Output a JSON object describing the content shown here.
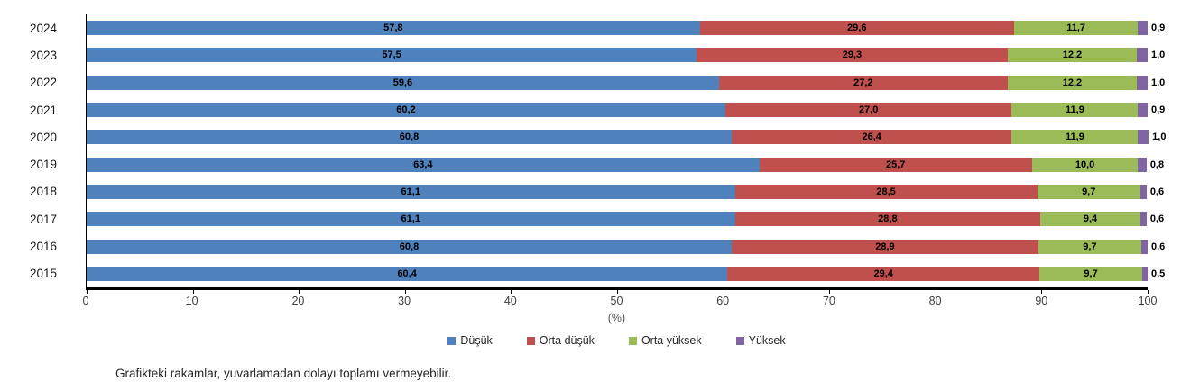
{
  "chart_data": {
    "type": "bar",
    "orientation": "horizontal",
    "stacked": true,
    "categories": [
      "2024",
      "2023",
      "2022",
      "2021",
      "2020",
      "2019",
      "2018",
      "2017",
      "2016",
      "2015"
    ],
    "series": [
      {
        "name": "Düşük",
        "color": "#4F81BD",
        "values": [
          57.8,
          57.5,
          59.6,
          60.2,
          60.8,
          63.4,
          61.1,
          61.1,
          60.8,
          60.4
        ]
      },
      {
        "name": "Orta düşük",
        "color": "#C0504D",
        "values": [
          29.6,
          29.3,
          27.2,
          27.0,
          26.4,
          25.7,
          28.5,
          28.8,
          28.9,
          29.4
        ]
      },
      {
        "name": "Orta yüksek",
        "color": "#9BBB59",
        "values": [
          11.7,
          12.2,
          12.2,
          11.9,
          11.9,
          10.0,
          9.7,
          9.4,
          9.7,
          9.7
        ]
      },
      {
        "name": "Yüksek",
        "color": "#8064A2",
        "values": [
          0.9,
          1.0,
          1.0,
          0.9,
          1.0,
          0.8,
          0.6,
          0.6,
          0.6,
          0.5
        ]
      }
    ],
    "value_labels": [
      [
        "57,8",
        "57,5",
        "59,6",
        "60,2",
        "60,8",
        "63,4",
        "61,1",
        "61,1",
        "60,8",
        "60,4"
      ],
      [
        "29,6",
        "29,3",
        "27,2",
        "27,0",
        "26,4",
        "25,7",
        "28,5",
        "28,8",
        "28,9",
        "29,4"
      ],
      [
        "11,7",
        "12,2",
        "12,2",
        "11,9",
        "11,9",
        "10,0",
        "9,7",
        "9,4",
        "9,7",
        "9,7"
      ],
      [
        "0,9",
        "1,0",
        "1,0",
        "0,9",
        "1,0",
        "0,8",
        "0,6",
        "0,6",
        "0,6",
        "0,5"
      ]
    ],
    "xlabel": "(%)",
    "xlim": [
      0,
      100
    ],
    "xticks": [
      0,
      10,
      20,
      30,
      40,
      50,
      60,
      70,
      80,
      90,
      100
    ],
    "grid": false,
    "legend_position": "bottom",
    "legend_labels": [
      "Düşük",
      "Orta düşük",
      "Orta yüksek",
      "Yüksek"
    ],
    "footnote": "Grafikteki rakamlar, yuvarlamadan dolayı toplamı vermeyebilir."
  }
}
